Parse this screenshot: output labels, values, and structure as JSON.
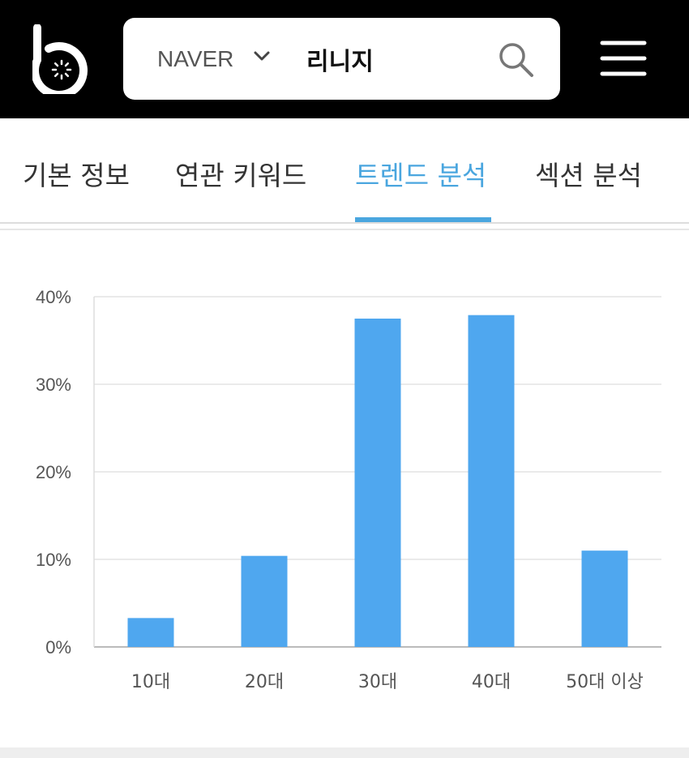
{
  "header": {
    "logo_icon": "b-logo-icon",
    "search": {
      "engine": "NAVER",
      "engine_dropdown_icon": "chevron-down-icon",
      "query": "리니지",
      "search_icon": "search-icon"
    },
    "menu_icon": "hamburger-menu-icon"
  },
  "tabs": [
    {
      "label": "기본 정보",
      "active": false
    },
    {
      "label": "연관 키워드",
      "active": false
    },
    {
      "label": "트렌드 분석",
      "active": true
    },
    {
      "label": "섹션 분석",
      "active": false
    }
  ],
  "colors": {
    "header_bg": "#000000",
    "accent": "#4aa6df",
    "bar": "#4fa7ef",
    "grid": "#e3e3e3",
    "axis_text": "#555555"
  },
  "chart_data": {
    "type": "bar",
    "categories": [
      "10대",
      "20대",
      "30대",
      "40대",
      "50대 이상"
    ],
    "values": [
      3.3,
      10.4,
      37.5,
      37.9,
      11.0
    ],
    "ylim": [
      0,
      40
    ],
    "yticks": [
      0,
      10,
      20,
      30,
      40
    ],
    "ytick_labels": [
      "0%",
      "10%",
      "20%",
      "30%",
      "40%"
    ],
    "grid": true
  }
}
